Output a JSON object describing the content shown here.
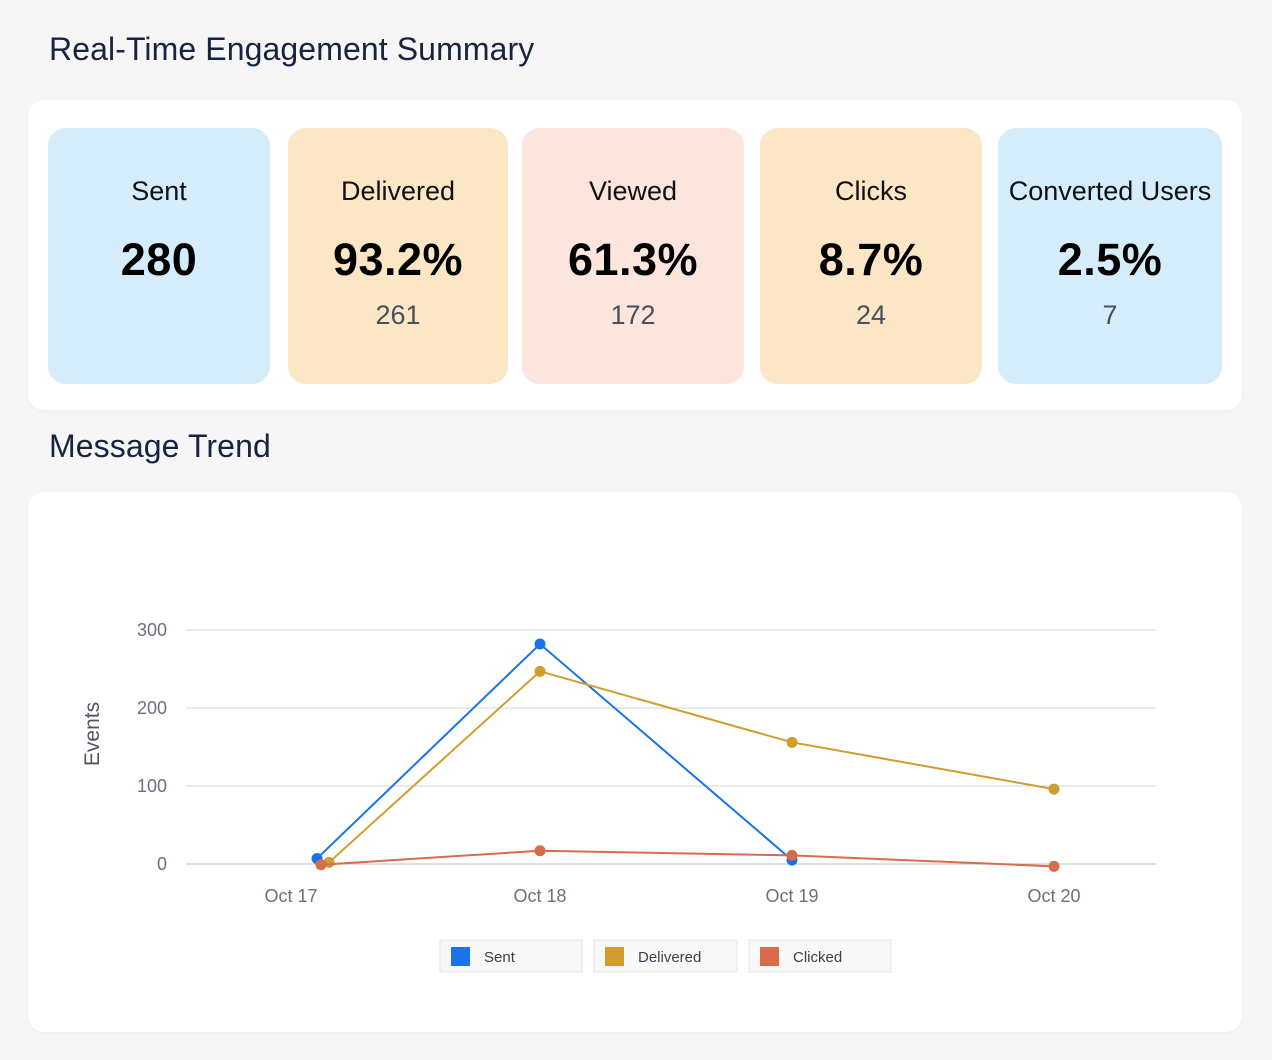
{
  "summary": {
    "title": "Real-Time Engagement Summary",
    "cards": [
      {
        "label": "Sent",
        "value": "280",
        "sub": "",
        "color": "#d5ecfb"
      },
      {
        "label": "Delivered",
        "value": "93.2%",
        "sub": "261",
        "color": "#fbe6c5"
      },
      {
        "label": "Viewed",
        "value": "61.3%",
        "sub": "172",
        "color": "#fce5dd"
      },
      {
        "label": "Clicks",
        "value": "8.7%",
        "sub": "24",
        "color": "#fbe6c5"
      },
      {
        "label": "Converted Users",
        "value": "2.5%",
        "sub": "7",
        "color": "#d5ecfb"
      }
    ]
  },
  "trend": {
    "title": "Message Trend"
  },
  "chart_data": {
    "type": "line",
    "title": "",
    "xlabel": "",
    "ylabel": "Events",
    "categories": [
      "Oct 17",
      "Oct 18",
      "Oct 19",
      "Oct 20"
    ],
    "ylim": [
      0,
      300
    ],
    "yticks": [
      0,
      100,
      200,
      300
    ],
    "grid": true,
    "legend_position": "bottom",
    "series": [
      {
        "name": "Sent",
        "color": "#1a73e8",
        "values": [
          7,
          282,
          5,
          null
        ]
      },
      {
        "name": "Delivered",
        "color": "#d19d2e",
        "values": [
          2,
          247,
          156,
          96
        ]
      },
      {
        "name": "Clicked",
        "color": "#d86c4a",
        "values": [
          -1,
          17,
          11,
          -3
        ]
      }
    ]
  }
}
